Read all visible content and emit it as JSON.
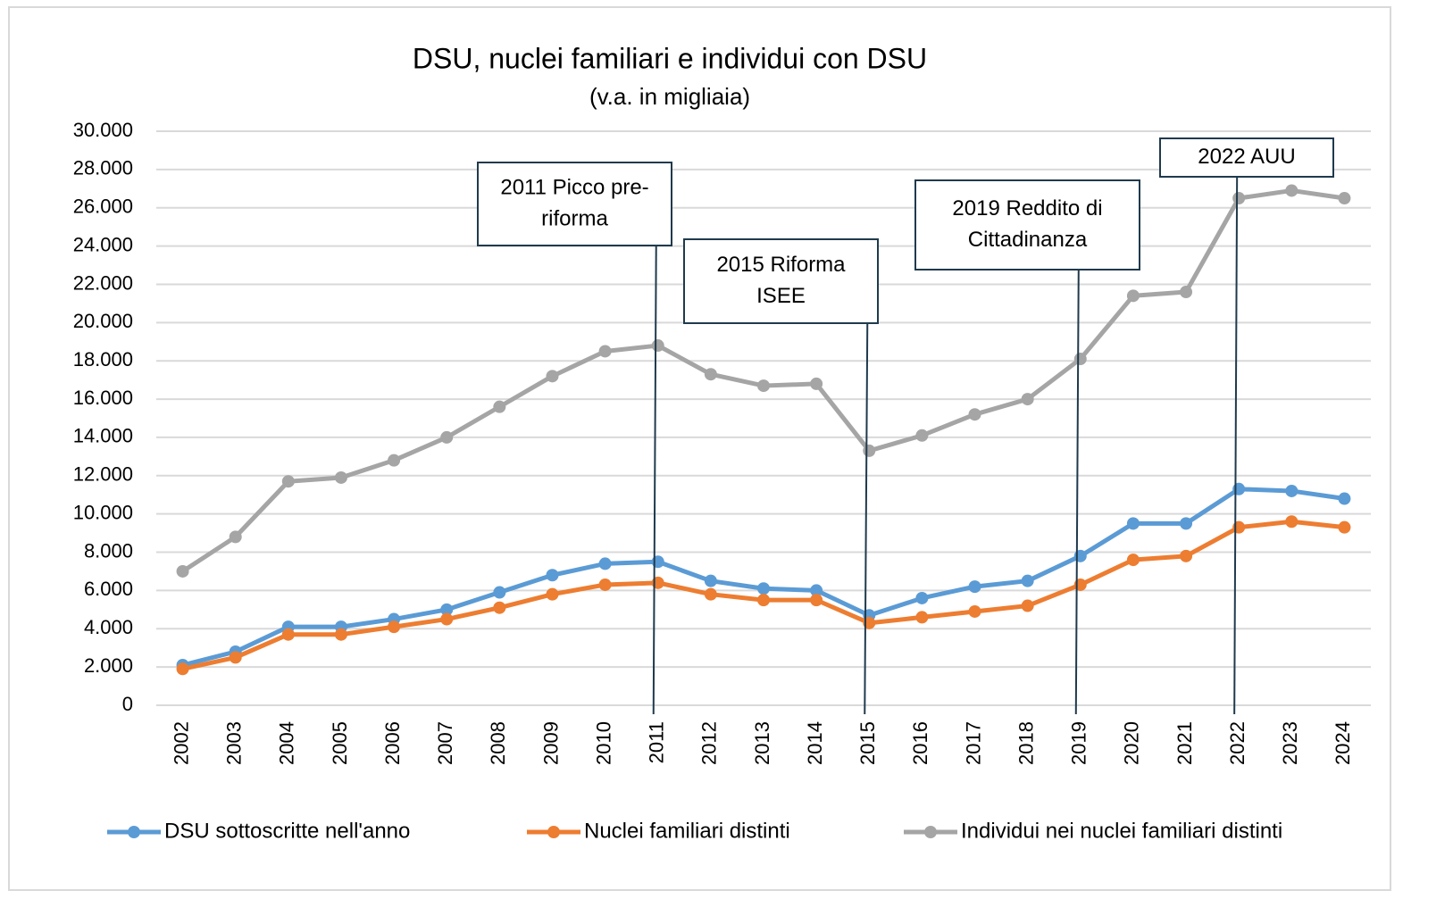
{
  "chart_data": {
    "type": "line",
    "title": "DSU, nuclei familiari e individui con DSU",
    "subtitle": "(v.a. in migliaia)",
    "categories": [
      "2002",
      "2003",
      "2004",
      "2005",
      "2006",
      "2007",
      "2008",
      "2009",
      "2010",
      "2011",
      "2012",
      "2013",
      "2014",
      "2015",
      "2016",
      "2017",
      "2018",
      "2019",
      "2020",
      "2021",
      "2022",
      "2023",
      "2024"
    ],
    "series": [
      {
        "name": "DSU sottoscritte nell'anno",
        "color": "#5b9bd5",
        "values": [
          2100,
          2800,
          4100,
          4100,
          4500,
          5000,
          5900,
          6800,
          7400,
          7500,
          6500,
          6100,
          6000,
          4700,
          5600,
          6200,
          6500,
          7800,
          9500,
          9500,
          11300,
          11200,
          10800
        ]
      },
      {
        "name": "Nuclei familiari distinti",
        "color": "#ed7d31",
        "values": [
          1900,
          2500,
          3700,
          3700,
          4100,
          4500,
          5100,
          5800,
          6300,
          6400,
          5800,
          5500,
          5500,
          4300,
          4600,
          4900,
          5200,
          6300,
          7600,
          7800,
          9300,
          9600,
          9300
        ]
      },
      {
        "name": "Individui nei nuclei familiari distinti",
        "color": "#a5a5a5",
        "values": [
          7000,
          8800,
          11700,
          11900,
          12800,
          14000,
          15600,
          17200,
          18500,
          18800,
          17300,
          16700,
          16800,
          13300,
          14100,
          15200,
          16000,
          18100,
          21400,
          21600,
          26500,
          26900,
          26500
        ]
      }
    ],
    "ylim": [
      0,
      30000
    ],
    "yticks": [
      0,
      {
        "value": 2000,
        "label": "2.000"
      },
      {
        "value": 4000,
        "label": "4.000"
      },
      {
        "value": 6000,
        "label": "6.000"
      },
      {
        "value": 8000,
        "label": "8.000"
      },
      {
        "value": 10000,
        "label": "10.000"
      },
      {
        "value": 12000,
        "label": "12.000"
      },
      {
        "value": 14000,
        "label": "14.000"
      },
      {
        "value": 16000,
        "label": "16.000"
      },
      {
        "value": 18000,
        "label": "18.000"
      },
      {
        "value": 20000,
        "label": "20.000"
      },
      {
        "value": 22000,
        "label": "22.000"
      },
      {
        "value": 24000,
        "label": "24.000"
      },
      {
        "value": 26000,
        "label": "26.000"
      },
      {
        "value": 28000,
        "label": "28.000"
      },
      {
        "value": 30000,
        "label": "30.000"
      }
    ],
    "grid": true,
    "legend": "bottom",
    "annotations": [
      {
        "year": "2011",
        "lines": [
          "2011 Picco pre-",
          "riforma"
        ]
      },
      {
        "year": "2015",
        "lines": [
          "2015 Riforma",
          "ISEE"
        ]
      },
      {
        "year": "2019",
        "lines": [
          "2019 Reddito di",
          "Cittadinanza"
        ]
      },
      {
        "year": "2022",
        "lines": [
          "2022 AUU"
        ]
      }
    ]
  }
}
